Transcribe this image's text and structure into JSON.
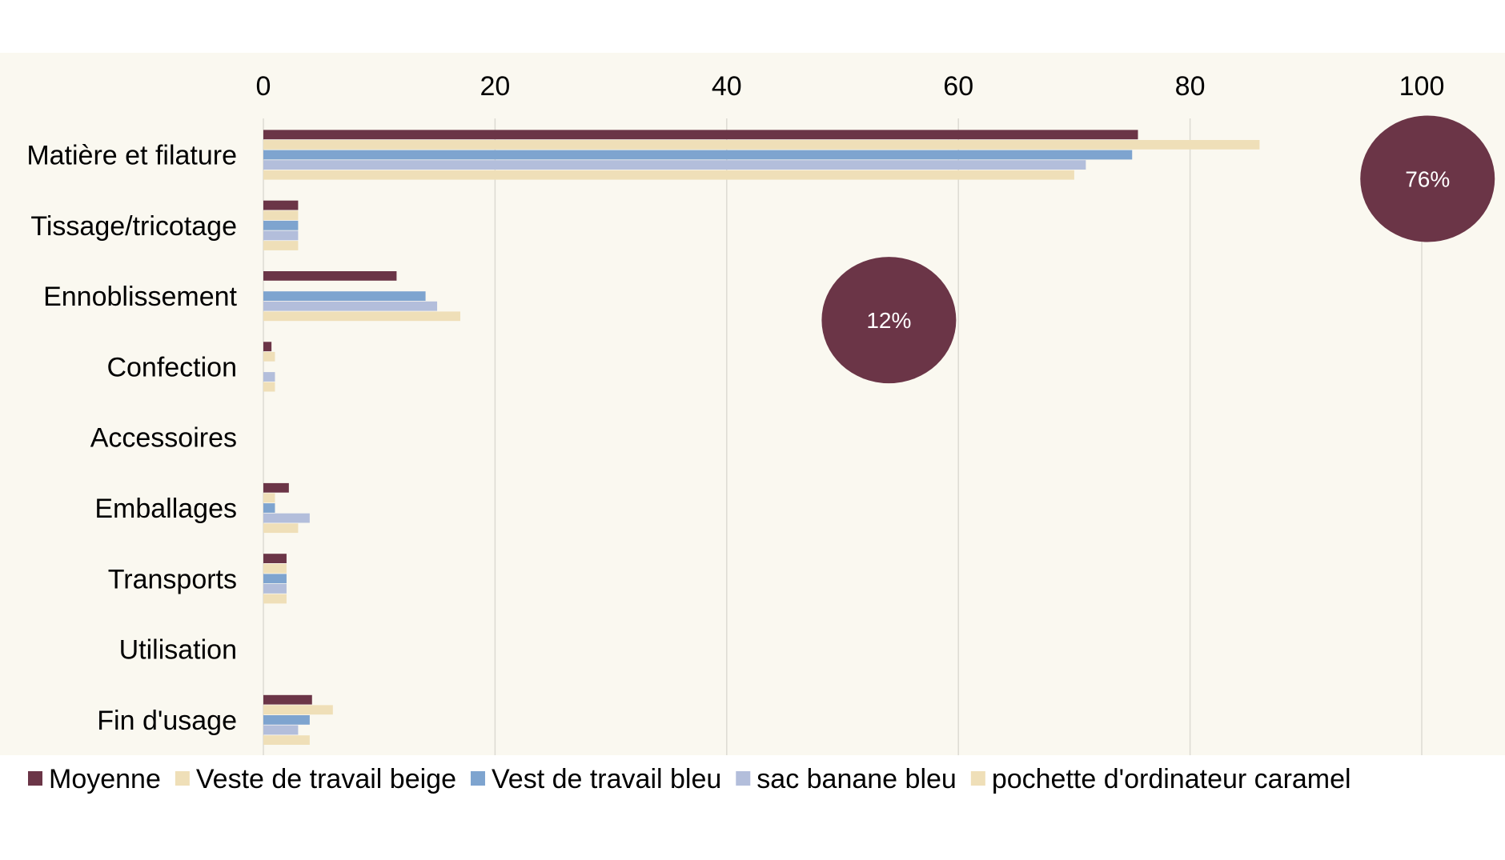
{
  "chart_data": {
    "type": "bar",
    "orientation": "horizontal",
    "title": "",
    "xlabel": "",
    "ylabel": "",
    "xlim": [
      0,
      100
    ],
    "x_ticks": [
      0,
      20,
      40,
      60,
      80,
      100
    ],
    "x_axis_position": "top",
    "grid": true,
    "legend_position": "bottom",
    "background_color": "#faf8f0",
    "categories": [
      "Matière et filature",
      "Tissage/tricotage",
      "Ennoblissement",
      "Confection",
      "Accessoires",
      "Emballages",
      "Transports",
      "Utilisation",
      "Fin d'usage"
    ],
    "series": [
      {
        "name": "Moyenne",
        "color": "#6b3547",
        "values": [
          75.5,
          3,
          11.5,
          0.7,
          0,
          2.2,
          2,
          0,
          4.2
        ]
      },
      {
        "name": "Veste de travail beige",
        "color": "#efdfb8",
        "values": [
          86,
          3,
          0,
          1,
          0,
          1,
          2,
          0,
          6
        ]
      },
      {
        "name": "Vest de travail bleu",
        "color": "#7ea4cf",
        "values": [
          75,
          3,
          14,
          0,
          0,
          1,
          2,
          0,
          4
        ]
      },
      {
        "name": "sac banane bleu",
        "color": "#b3bedb",
        "values": [
          71,
          3,
          15,
          1,
          0,
          4,
          2,
          0,
          3
        ]
      },
      {
        "name": "pochette d'ordinateur caramel",
        "color": "#efdfb8",
        "values": [
          70,
          3,
          17,
          1,
          0,
          3,
          2,
          0,
          4
        ]
      }
    ],
    "annotations": [
      {
        "label": "76%",
        "category": "Matière et filature",
        "at_value": 100.5,
        "color": "#6b3547"
      },
      {
        "label": "12%",
        "category": "Ennoblissement",
        "at_value": 54,
        "color": "#6b3547"
      }
    ]
  }
}
